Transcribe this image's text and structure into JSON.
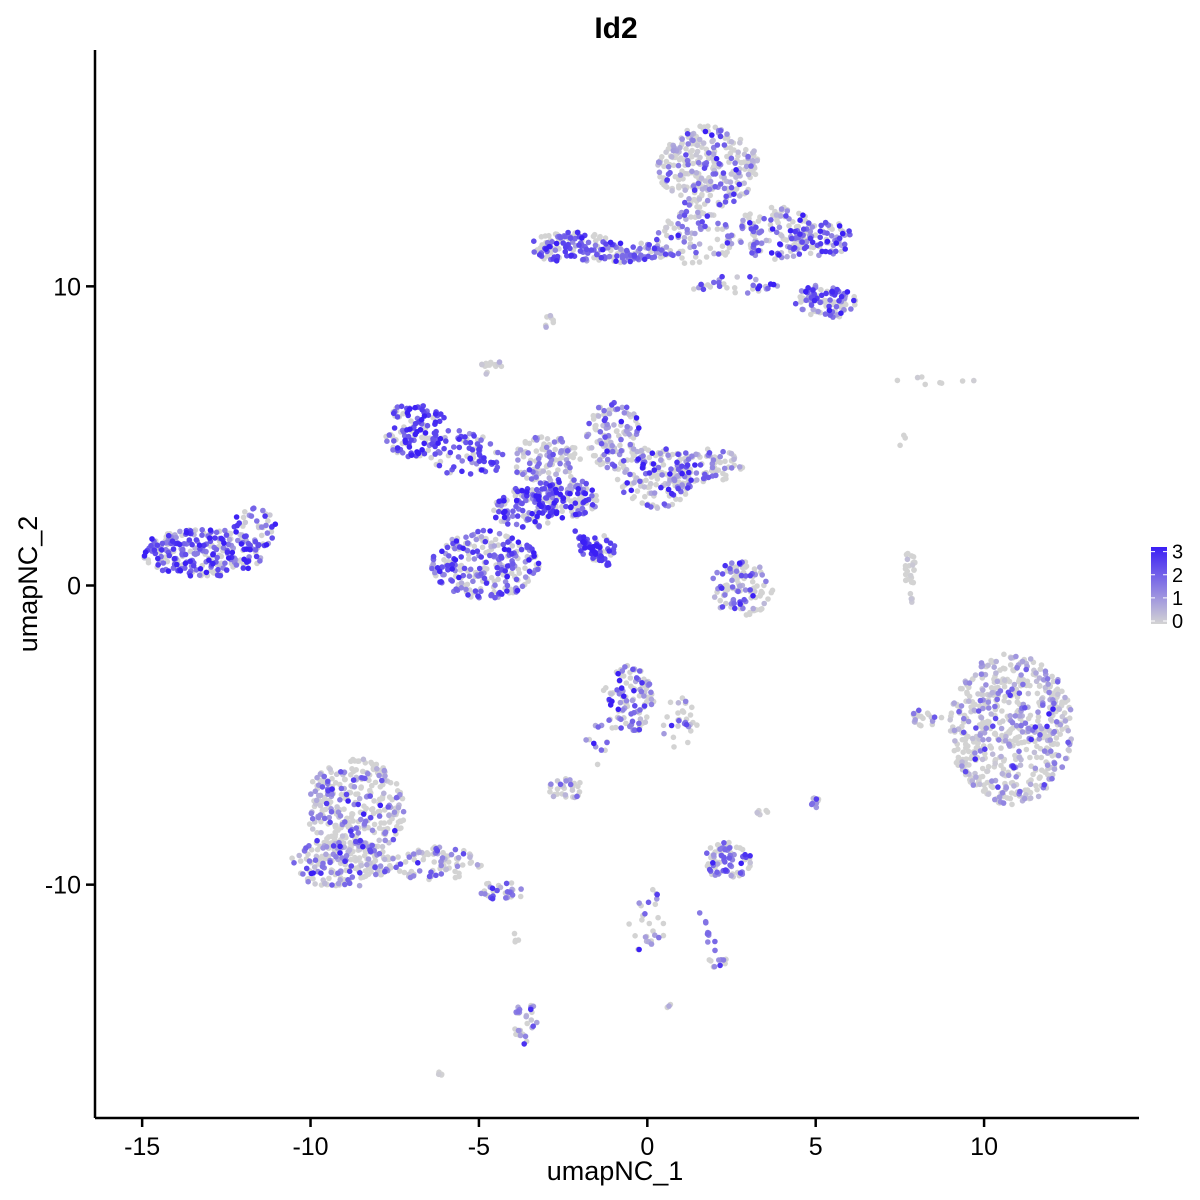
{
  "chart_data": {
    "type": "scatter",
    "title": "Id2",
    "xlabel": "umapNC_1",
    "ylabel": "umapNC_2",
    "xlim": [
      -16.4,
      14.6
    ],
    "ylim": [
      -17.8,
      17.9
    ],
    "x_ticks": [
      -15,
      -10,
      -5,
      0,
      5,
      10
    ],
    "x_tick_labels": [
      "-15",
      "-10",
      "-5",
      "0",
      "5",
      "10"
    ],
    "y_ticks": [
      -10,
      0,
      10
    ],
    "y_tick_labels": [
      "-10",
      "0",
      "10"
    ],
    "grid": false,
    "legend": {
      "placement": "right",
      "type": "colorbar",
      "breaks": [
        0,
        1,
        2,
        3
      ],
      "labels": [
        "0",
        "1",
        "2",
        "3"
      ],
      "low_color": "#d3d3d3",
      "high_color": "#3b1ff5"
    },
    "clusters": [
      {
        "x": -13.2,
        "y": 1.1,
        "rx": 1.6,
        "ry": 0.7,
        "n": 260,
        "expr": 1.9,
        "spread": 0.35
      },
      {
        "x": -11.7,
        "y": 1.9,
        "rx": 0.6,
        "ry": 0.6,
        "n": 45,
        "expr": 1.6,
        "spread": 0.35
      },
      {
        "x": -7.0,
        "y": 5.2,
        "rx": 0.7,
        "ry": 0.8,
        "n": 110,
        "expr": 2.4,
        "spread": 0.25
      },
      {
        "x": -5.5,
        "y": 4.4,
        "rx": 1.2,
        "ry": 0.6,
        "n": 70,
        "expr": 2.1,
        "spread": 0.3
      },
      {
        "x": -4.8,
        "y": 0.7,
        "rx": 1.4,
        "ry": 1.0,
        "n": 260,
        "expr": 1.8,
        "spread": 0.4
      },
      {
        "x": -3.6,
        "y": 2.6,
        "rx": 0.9,
        "ry": 0.6,
        "n": 120,
        "expr": 2.0,
        "spread": 0.35
      },
      {
        "x": -2.4,
        "y": 2.9,
        "rx": 0.8,
        "ry": 0.6,
        "n": 130,
        "expr": 2.3,
        "spread": 0.35
      },
      {
        "x": -3.0,
        "y": 4.2,
        "rx": 0.9,
        "ry": 0.7,
        "n": 110,
        "expr": 0.6,
        "spread": 0.45
      },
      {
        "x": -1.5,
        "y": 1.3,
        "rx": 0.5,
        "ry": 0.4,
        "n": 40,
        "expr": 2.6,
        "spread": 0.2
      },
      {
        "x": -1.0,
        "y": 5.0,
        "rx": 0.7,
        "ry": 1.0,
        "n": 120,
        "expr": 1.0,
        "spread": 0.55
      },
      {
        "x": 0.2,
        "y": 3.6,
        "rx": 1.0,
        "ry": 0.9,
        "n": 160,
        "expr": 1.0,
        "spread": 0.55
      },
      {
        "x": 1.8,
        "y": 4.0,
        "rx": 0.9,
        "ry": 0.5,
        "n": 80,
        "expr": 0.8,
        "spread": 0.55
      },
      {
        "x": -4.6,
        "y": 7.3,
        "rx": 0.3,
        "ry": 0.25,
        "n": 14,
        "expr": 0.1,
        "spread": 0.2
      },
      {
        "x": -2.9,
        "y": 8.8,
        "rx": 0.2,
        "ry": 0.2,
        "n": 8,
        "expr": 0.4,
        "spread": 0.3
      },
      {
        "x": -2.1,
        "y": 11.3,
        "rx": 1.2,
        "ry": 0.5,
        "n": 130,
        "expr": 2.1,
        "spread": 0.3
      },
      {
        "x": -0.3,
        "y": 11.1,
        "rx": 1.1,
        "ry": 0.3,
        "n": 50,
        "expr": 1.6,
        "spread": 0.35
      },
      {
        "x": 1.8,
        "y": 14.0,
        "rx": 1.3,
        "ry": 1.2,
        "n": 280,
        "expr": 0.5,
        "spread": 0.5
      },
      {
        "x": 1.4,
        "y": 11.6,
        "rx": 1.0,
        "ry": 0.8,
        "n": 90,
        "expr": 1.2,
        "spread": 0.5
      },
      {
        "x": 3.8,
        "y": 11.8,
        "rx": 1.0,
        "ry": 0.8,
        "n": 140,
        "expr": 1.2,
        "spread": 0.5
      },
      {
        "x": 5.2,
        "y": 11.6,
        "rx": 0.8,
        "ry": 0.5,
        "n": 80,
        "expr": 1.9,
        "spread": 0.35
      },
      {
        "x": 5.3,
        "y": 9.5,
        "rx": 0.8,
        "ry": 0.5,
        "n": 100,
        "expr": 1.9,
        "spread": 0.35
      },
      {
        "x": 2.6,
        "y": 10.0,
        "rx": 1.1,
        "ry": 0.3,
        "n": 35,
        "expr": 1.5,
        "spread": 0.4
      },
      {
        "x": 2.8,
        "y": -0.1,
        "rx": 0.8,
        "ry": 0.8,
        "n": 110,
        "expr": 1.1,
        "spread": 0.55
      },
      {
        "x": 7.8,
        "y": 0.3,
        "rx": 0.15,
        "ry": 0.8,
        "n": 28,
        "expr": 0.0,
        "spread": 0.1
      },
      {
        "x": 10.8,
        "y": -4.8,
        "rx": 1.6,
        "ry": 2.2,
        "n": 600,
        "expr": 0.25,
        "spread": 0.45
      },
      {
        "x": 8.3,
        "y": -4.4,
        "rx": 0.4,
        "ry": 0.3,
        "n": 20,
        "expr": 0.4,
        "spread": 0.4
      },
      {
        "x": -0.6,
        "y": -3.8,
        "rx": 0.7,
        "ry": 1.0,
        "n": 110,
        "expr": 1.2,
        "spread": 0.5
      },
      {
        "x": 1.0,
        "y": -4.6,
        "rx": 0.5,
        "ry": 0.8,
        "n": 30,
        "expr": 0.6,
        "spread": 0.5
      },
      {
        "x": -1.5,
        "y": -5.3,
        "rx": 0.3,
        "ry": 0.6,
        "n": 12,
        "expr": 1.2,
        "spread": 0.4
      },
      {
        "x": -2.4,
        "y": -6.8,
        "rx": 0.5,
        "ry": 0.3,
        "n": 30,
        "expr": 0.4,
        "spread": 0.4
      },
      {
        "x": -8.7,
        "y": -7.5,
        "rx": 1.3,
        "ry": 1.5,
        "n": 340,
        "expr": 0.5,
        "spread": 0.5
      },
      {
        "x": -9.1,
        "y": -9.3,
        "rx": 1.3,
        "ry": 0.7,
        "n": 170,
        "expr": 0.6,
        "spread": 0.55
      },
      {
        "x": -6.3,
        "y": -9.3,
        "rx": 1.2,
        "ry": 0.5,
        "n": 90,
        "expr": 0.8,
        "spread": 0.55
      },
      {
        "x": -4.3,
        "y": -10.2,
        "rx": 0.6,
        "ry": 0.3,
        "n": 30,
        "expr": 1.6,
        "spread": 0.4
      },
      {
        "x": 2.4,
        "y": -9.2,
        "rx": 0.6,
        "ry": 0.6,
        "n": 80,
        "expr": 1.7,
        "spread": 0.35
      },
      {
        "x": 3.4,
        "y": -7.6,
        "rx": 0.2,
        "ry": 0.2,
        "n": 6,
        "expr": 0.0,
        "spread": 0.1
      },
      {
        "x": 5.0,
        "y": -7.3,
        "rx": 0.15,
        "ry": 0.25,
        "n": 10,
        "expr": 1.2,
        "spread": 0.4
      },
      {
        "x": 0.1,
        "y": -11.3,
        "rx": 0.6,
        "ry": 1.0,
        "n": 28,
        "expr": 1.2,
        "spread": 0.55
      },
      {
        "x": 2.1,
        "y": -12.6,
        "rx": 0.3,
        "ry": 0.15,
        "n": 12,
        "expr": 1.0,
        "spread": 0.5
      },
      {
        "x": -3.6,
        "y": -14.6,
        "rx": 0.3,
        "ry": 0.8,
        "n": 30,
        "expr": 1.2,
        "spread": 0.5
      },
      {
        "x": -6.1,
        "y": -16.3,
        "rx": 0.1,
        "ry": 0.1,
        "n": 4,
        "expr": 0.0,
        "spread": 0.1
      },
      {
        "x": 8.5,
        "y": 6.8,
        "rx": 1.3,
        "ry": 0.2,
        "n": 8,
        "expr": 0.0,
        "spread": 0.1
      },
      {
        "x": 7.6,
        "y": 4.8,
        "rx": 0.1,
        "ry": 0.2,
        "n": 3,
        "expr": 0.0,
        "spread": 0.1
      },
      {
        "x": -3.9,
        "y": -11.8,
        "rx": 0.1,
        "ry": 0.2,
        "n": 4,
        "expr": 0.0,
        "spread": 0.1
      },
      {
        "x": 0.6,
        "y": -14.0,
        "rx": 0.1,
        "ry": 0.1,
        "n": 3,
        "expr": 1.0,
        "spread": 0.3
      }
    ],
    "streaks": [
      {
        "x0": -2.2,
        "y0": 1.8,
        "x1": -1.2,
        "y1": 0.7,
        "n": 30,
        "expr": 2.7
      },
      {
        "x0": -6.3,
        "y0": 5.8,
        "x1": -4.5,
        "y1": 3.9,
        "n": 25,
        "expr": 2.3
      },
      {
        "x0": -1.0,
        "y0": 11.0,
        "x1": 0.8,
        "y1": 11.1,
        "n": 20,
        "expr": 2.0
      },
      {
        "x0": 1.5,
        "y0": -10.6,
        "x1": 2.1,
        "y1": -12.6,
        "n": 10,
        "expr": 1.5
      }
    ]
  }
}
